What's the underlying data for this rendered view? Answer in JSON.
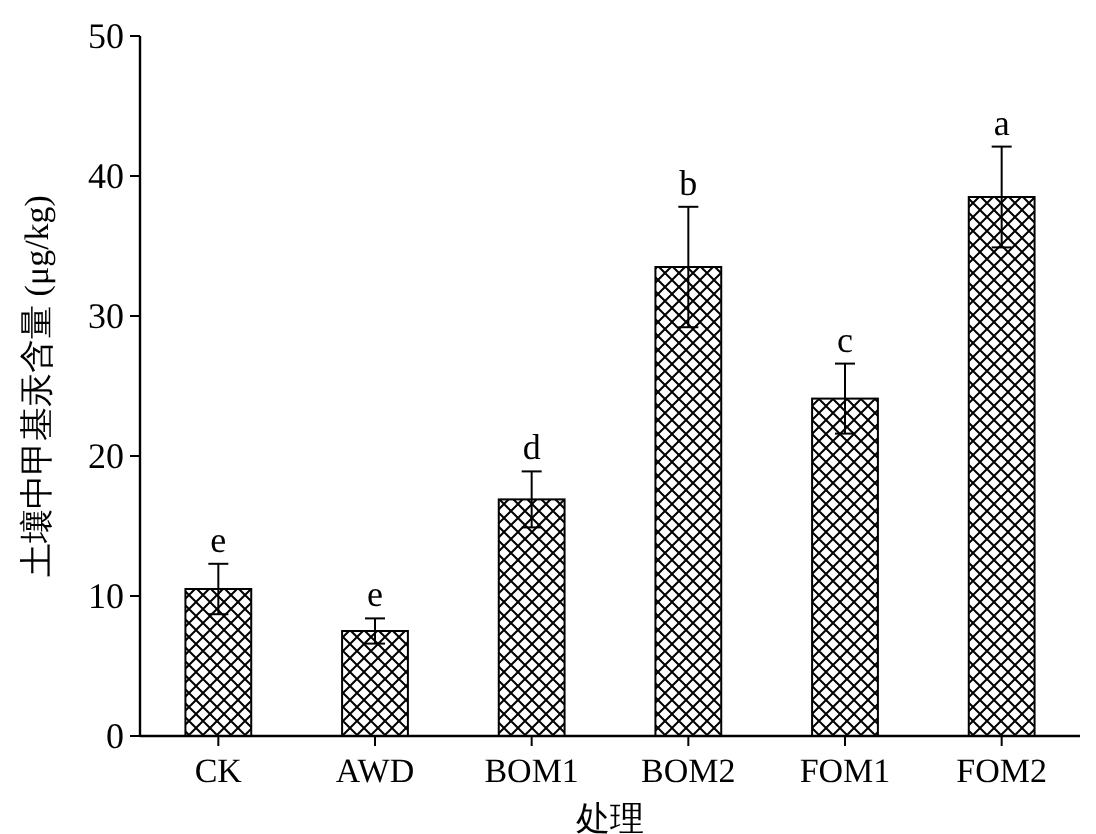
{
  "chart_data": {
    "type": "bar",
    "xlabel": "处理",
    "ylabel": "土壤中甲基汞含量 (μg/kg)",
    "categories": [
      "CK",
      "AWD",
      "BOM1",
      "BOM2",
      "FOM1",
      "FOM2"
    ],
    "values": [
      10.5,
      7.5,
      16.9,
      33.5,
      24.1,
      38.5
    ],
    "errors": [
      1.8,
      0.9,
      2.0,
      4.3,
      2.5,
      3.6
    ],
    "color": "#000000",
    "ylim": [
      0,
      50
    ],
    "yticks": [
      0,
      10,
      20,
      30,
      40,
      50
    ],
    "annotations": [
      {
        "text": "e",
        "x": "CK",
        "y": 12.3
      },
      {
        "text": "e",
        "x": "AWD",
        "y": 8.4
      },
      {
        "text": "d",
        "x": "BOM1",
        "y": 18.9
      },
      {
        "text": "b",
        "x": "BOM2",
        "y": 37.8
      },
      {
        "text": "c",
        "x": "FOM1",
        "y": 26.6
      },
      {
        "text": "a",
        "x": "FOM2",
        "y": 42.1
      }
    ]
  }
}
